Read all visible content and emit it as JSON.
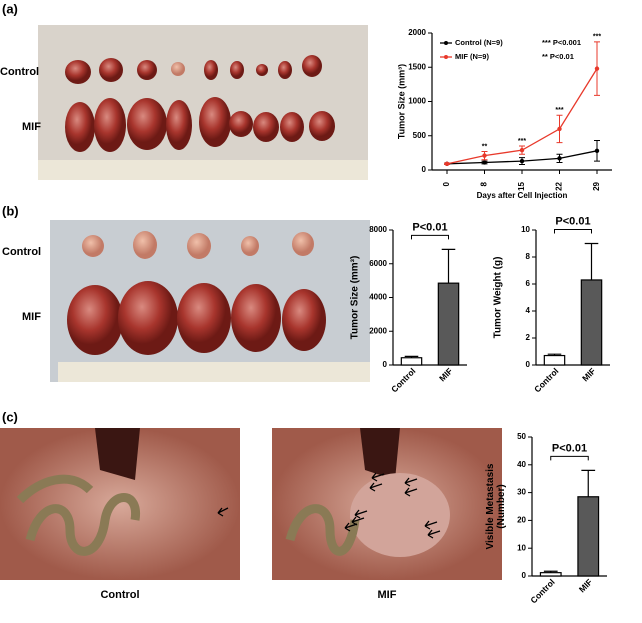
{
  "panels": [
    {
      "label": "(a)",
      "photo_labels": [
        "Control",
        "MIF"
      ]
    },
    {
      "label": "(b)",
      "photo_labels": [
        "Control",
        "MIF"
      ]
    },
    {
      "label": "(c)",
      "photo_labels": [
        "Control",
        "MIF"
      ]
    }
  ],
  "chart_data": [
    {
      "type": "line",
      "categories": [
        "0",
        "8",
        "15",
        "22",
        "29"
      ],
      "xlabel": "Days after Cell Injection",
      "ylabel": "Tumor Size (mm³)",
      "ylim": [
        0,
        2000
      ],
      "yticks": [
        0,
        500,
        1000,
        1500,
        2000
      ],
      "series": [
        {
          "name": "Control (N=9)",
          "color": "#000000",
          "values": [
            90,
            110,
            130,
            170,
            280
          ],
          "errors": [
            10,
            20,
            50,
            60,
            150
          ]
        },
        {
          "name": "MIF (N=9)",
          "color": "#e8392b",
          "values": [
            90,
            210,
            290,
            600,
            1480
          ],
          "errors": [
            10,
            60,
            60,
            200,
            390
          ]
        }
      ],
      "significance": [
        null,
        "**",
        "***",
        "***",
        "***"
      ],
      "annotations": [
        "*** P<0.001",
        "** P<0.01"
      ]
    },
    {
      "type": "bar",
      "categories": [
        "Control",
        "MIF"
      ],
      "values": [
        430,
        4850
      ],
      "errors": [
        80,
        2000
      ],
      "colors": [
        "#ffffff",
        "#595959"
      ],
      "ylabel": [
        "Tumor Size (mm³)"
      ],
      "ylim": [
        0,
        8000
      ],
      "yticks": [
        0,
        2000,
        4000,
        6000,
        8000
      ],
      "annotation": "P<0.01"
    },
    {
      "type": "bar",
      "categories": [
        "Control",
        "MIF"
      ],
      "values": [
        0.7,
        6.3
      ],
      "errors": [
        0.1,
        2.7
      ],
      "colors": [
        "#ffffff",
        "#595959"
      ],
      "ylabel": [
        "Tumor Weight (g)"
      ],
      "ylim": [
        0,
        10
      ],
      "yticks": [
        0,
        2,
        4,
        6,
        8,
        10
      ],
      "annotation": "P<0.01"
    },
    {
      "type": "bar",
      "categories": [
        "Control",
        "MIF"
      ],
      "values": [
        1.2,
        28.5
      ],
      "errors": [
        0.5,
        9.5
      ],
      "colors": [
        "#ffffff",
        "#595959"
      ],
      "ylabel": [
        "Visible Metastasis",
        "(Number)"
      ],
      "ylim": [
        0,
        50
      ],
      "yticks": [
        0,
        10,
        20,
        30,
        40,
        50
      ],
      "annotation": "P<0.01"
    }
  ]
}
